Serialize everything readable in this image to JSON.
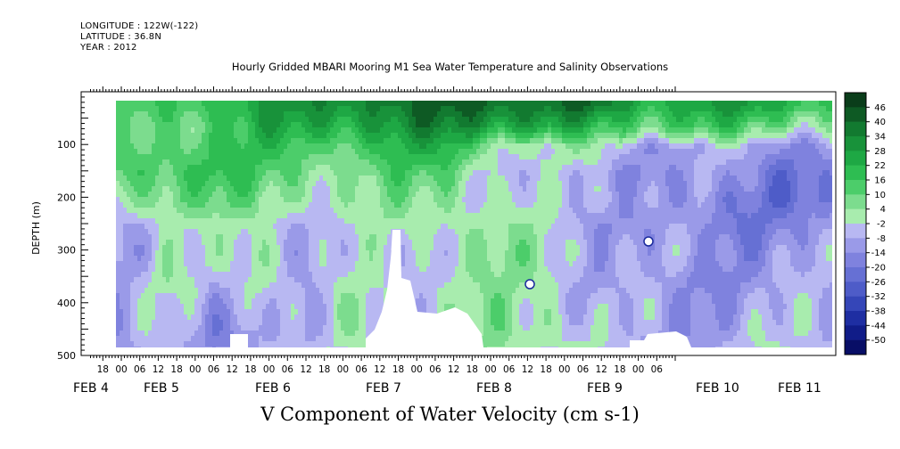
{
  "header": {
    "longitude": "LONGITUDE : 122W(-122)",
    "latitude": "LATITUDE : 36.8N",
    "year": "YEAR : 2012"
  },
  "chart_data": {
    "type": "heatmap",
    "title": "Hourly Gridded MBARI Mooring M1 Sea Water Temperature and Salinity Observations",
    "subtitle": "V Component of Water Velocity (cm s-1)",
    "ylabel": "DEPTH (m)",
    "y_range": [
      500,
      0
    ],
    "y_ticks": [
      100,
      200,
      300,
      400,
      500
    ],
    "x_hour_labels": [
      "18",
      "00",
      "06",
      "12",
      "18",
      "00",
      "06",
      "12",
      "18",
      "00",
      "06",
      "12",
      "18",
      "00",
      "06",
      "12",
      "18",
      "00",
      "06",
      "12",
      "18",
      "00",
      "06",
      "12",
      "18",
      "00",
      "06",
      "12",
      "18",
      "00",
      "06"
    ],
    "x_day_labels": [
      "FEB 4",
      "FEB 5",
      "FEB 6",
      "FEB 7",
      "FEB 8",
      "FEB 9",
      "FEB 10",
      "FEB 11"
    ],
    "colorbar_levels": [
      "46",
      "40",
      "34",
      "28",
      "22",
      "16",
      "10",
      "4",
      "-2",
      "-8",
      "-14",
      "-20",
      "-26",
      "-32",
      "-38",
      "-44",
      "-50"
    ],
    "colorbar_colors": [
      "#0a3d1a",
      "#0e5a24",
      "#127a30",
      "#18923a",
      "#1ea844",
      "#2ebd52",
      "#4ccd6a",
      "#7cdc8e",
      "#a8ecae",
      "#b8b8f2",
      "#9a9ae8",
      "#7f82de",
      "#6670d4",
      "#4e5cc8",
      "#3546b8",
      "#1e2ea2",
      "#101c88",
      "#080e66"
    ],
    "depth_samples": [
      20,
      60,
      100,
      150,
      200,
      250,
      300,
      350,
      400,
      450,
      485
    ],
    "columns": [
      {
        "t": "FEB 4 00",
        "v": [
          8,
          4,
          8,
          10,
          2,
          -8,
          -10,
          -8,
          -6,
          -10,
          -12
        ]
      },
      {
        "t": "FEB 4 12",
        "v": [
          14,
          10,
          12,
          16,
          12,
          2,
          0,
          2,
          -4,
          -6,
          -8
        ]
      },
      {
        "t": "FEB 5 00",
        "v": [
          22,
          16,
          18,
          20,
          10,
          -4,
          -6,
          -10,
          -14,
          -16,
          -12
        ]
      },
      {
        "t": "FEB 5 12",
        "v": [
          26,
          22,
          16,
          10,
          4,
          0,
          4,
          6,
          2,
          -4,
          -6
        ]
      },
      {
        "t": "FEB 6 00",
        "v": [
          30,
          24,
          14,
          8,
          4,
          -4,
          -8,
          -10,
          -12,
          -14,
          -10
        ]
      },
      {
        "t": "FEB 6 12",
        "v": [
          36,
          28,
          16,
          6,
          0,
          -4,
          -6,
          -2,
          2,
          4,
          2
        ]
      },
      {
        "t": "FEB 7 00",
        "v": [
          38,
          30,
          20,
          10,
          4,
          0,
          -4,
          -2,
          0,
          -2,
          -4
        ]
      },
      {
        "t": "FEB 7 12",
        "v": [
          40,
          34,
          22,
          12,
          6,
          4,
          2,
          0,
          -2,
          -4,
          -2
        ]
      },
      {
        "t": "FEB 8 00",
        "v": [
          42,
          30,
          4,
          -4,
          -2,
          2,
          4,
          2,
          4,
          6,
          4
        ]
      },
      {
        "t": "FEB 8 12",
        "v": [
          40,
          26,
          -4,
          -8,
          -6,
          -2,
          2,
          4,
          2,
          4,
          2
        ]
      },
      {
        "t": "FEB 9 00",
        "v": [
          36,
          18,
          2,
          -6,
          -4,
          -8,
          -6,
          -10,
          -8,
          -6,
          -4
        ]
      },
      {
        "t": "FEB 9 12",
        "v": [
          24,
          14,
          -8,
          -12,
          -10,
          -14,
          -12,
          -10,
          -8,
          -10,
          -12
        ]
      },
      {
        "t": "FEB 10 00",
        "v": [
          28,
          18,
          -10,
          -14,
          -16,
          -12,
          -10,
          -14,
          -12,
          -10,
          -8
        ]
      },
      {
        "t": "FEB 10 12",
        "v": [
          26,
          12,
          -6,
          -12,
          -16,
          -18,
          -14,
          -12,
          -10,
          -8,
          -6
        ]
      },
      {
        "t": "FEB 11 00",
        "v": [
          22,
          8,
          -12,
          -20,
          -22,
          -16,
          -12,
          -10,
          -8,
          -6,
          -4
        ]
      },
      {
        "t": "FEB 11 08",
        "v": [
          18,
          4,
          -10,
          -18,
          -20,
          -14,
          -10,
          -8,
          -6,
          -4,
          -2
        ]
      }
    ]
  }
}
